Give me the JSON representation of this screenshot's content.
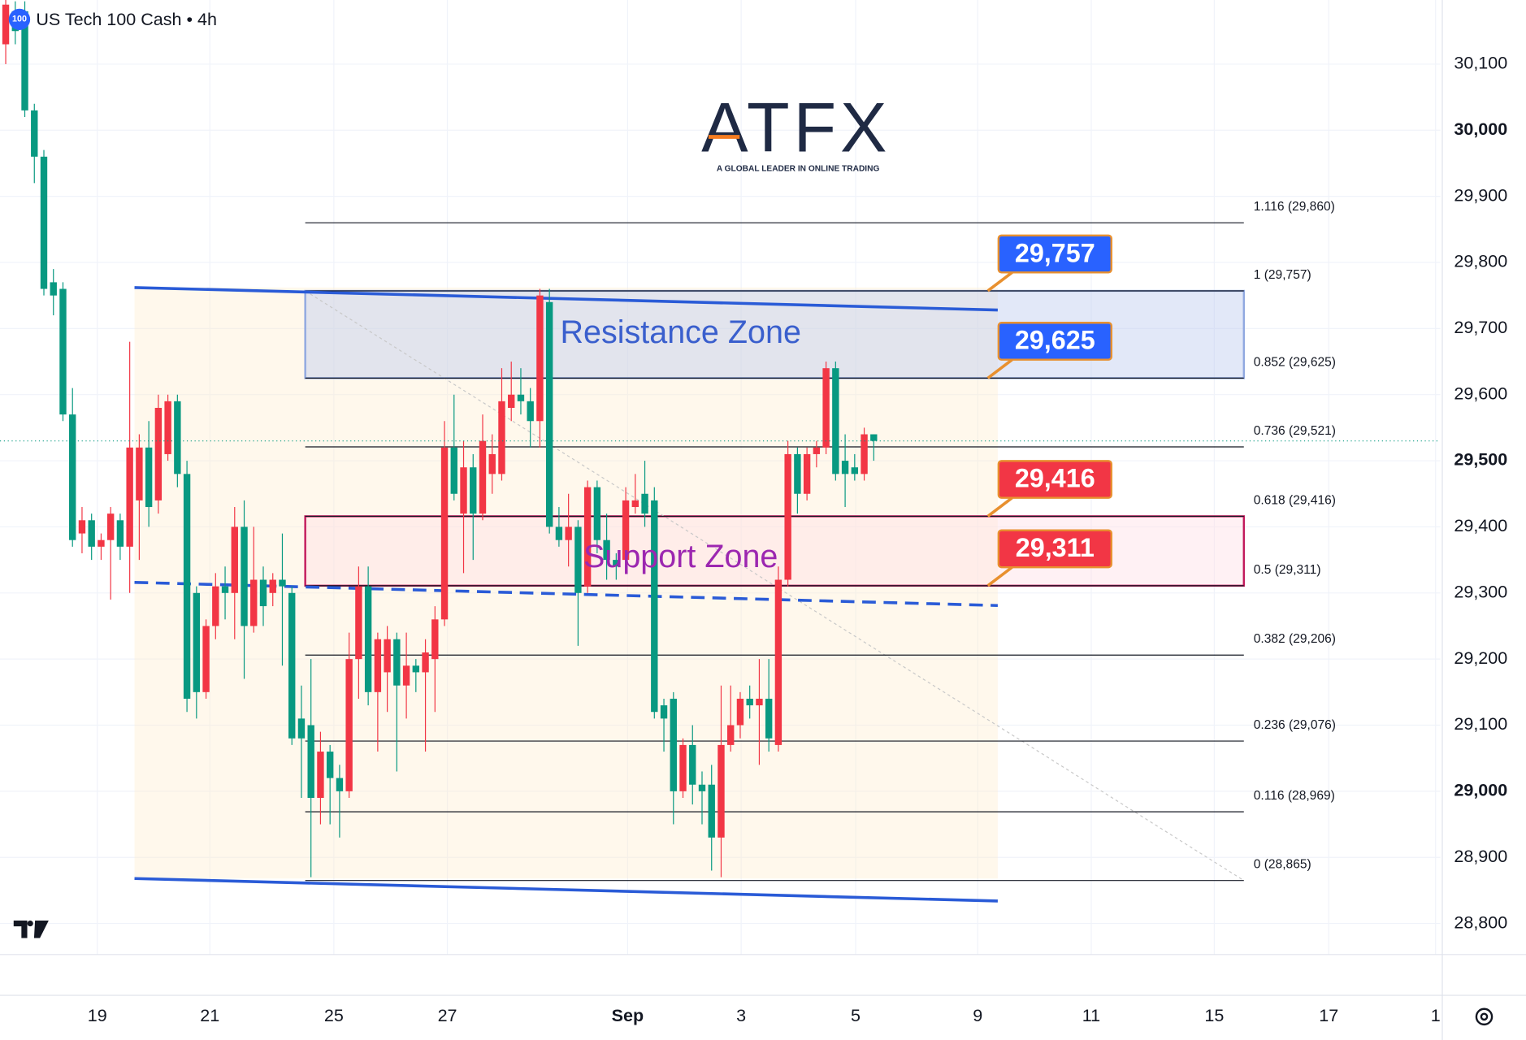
{
  "chart_data": {
    "type": "candlestick",
    "title": "US Tech 100 Cash • 4h",
    "symbol_badge": "100",
    "up_color": "#f23645",
    "down_color": "#089981",
    "xlim": [
      -0.6,
      150.4
    ],
    "ylim": [
      28753,
      30197
    ],
    "yticks": [
      {
        "value": 28800,
        "label": "28,800"
      },
      {
        "value": 28900,
        "label": "28,900"
      },
      {
        "value": 29000,
        "label": "29,000"
      },
      {
        "value": 29100,
        "label": "29,100"
      },
      {
        "value": 29200,
        "label": "29,200"
      },
      {
        "value": 29300,
        "label": "29,300"
      },
      {
        "value": 29400,
        "label": "29,400"
      },
      {
        "value": 29500,
        "label": "29,500"
      },
      {
        "value": 29600,
        "label": "29,600"
      },
      {
        "value": 29700,
        "label": "29,700"
      },
      {
        "value": 29800,
        "label": "29,800"
      },
      {
        "value": 29900,
        "label": "29,900"
      },
      {
        "value": 30000,
        "label": "30,000"
      },
      {
        "value": 30100,
        "label": "30,100"
      }
    ],
    "xticks": [
      {
        "value": 9.6,
        "label": "19"
      },
      {
        "value": 21.4,
        "label": "21"
      },
      {
        "value": 34.4,
        "label": "25"
      },
      {
        "value": 46.3,
        "label": "27"
      },
      {
        "value": 65.2,
        "label": "Sep"
      },
      {
        "value": 77.1,
        "label": "3"
      },
      {
        "value": 89.1,
        "label": "5"
      },
      {
        "value": 101.9,
        "label": "9"
      },
      {
        "value": 113.8,
        "label": "11"
      },
      {
        "value": 126.7,
        "label": "15"
      },
      {
        "value": 138.7,
        "label": "17"
      },
      {
        "value": 149.9,
        "label": "1"
      }
    ],
    "open": [
      30130,
      30180,
      30180,
      30030,
      29960,
      29770,
      29760,
      29570,
      29390,
      29410,
      29370,
      29380,
      29410,
      29370,
      29440,
      29520,
      29440,
      29510,
      29590,
      29480,
      29300,
      29150,
      29250,
      29310,
      29300,
      29400,
      29250,
      29320,
      29300,
      29320,
      29300,
      29110,
      29100,
      28990,
      29060,
      29020,
      29000,
      29200,
      29310,
      29150,
      29180,
      29230,
      29160,
      29190,
      29180,
      29200,
      29260,
      29520,
      29420,
      29490,
      29420,
      29480,
      29480,
      29580,
      29600,
      29590,
      29560,
      29740,
      29400,
      29380,
      29400,
      29310,
      29460,
      29380,
      29350,
      29350,
      29430,
      29450,
      29440,
      29130,
      29140,
      29000,
      29070,
      29010,
      29010,
      28930,
      29070,
      29100,
      29140,
      29130,
      29140,
      29070,
      29320,
      29510,
      29450,
      29510,
      29520,
      29640,
      29500,
      29490,
      29480,
      29540
    ],
    "high": [
      30197,
      30195,
      30195,
      30040,
      29970,
      29790,
      29770,
      29610,
      29430,
      29420,
      29390,
      29430,
      29420,
      29680,
      29540,
      29560,
      29600,
      29600,
      29600,
      29500,
      29310,
      29260,
      29330,
      29340,
      29430,
      29440,
      29400,
      29340,
      29330,
      29390,
      29310,
      29160,
      29200,
      29090,
      29070,
      29040,
      29240,
      29340,
      29340,
      29240,
      29250,
      29240,
      29240,
      29200,
      29230,
      29280,
      29560,
      29600,
      29530,
      29510,
      29570,
      29540,
      29640,
      29650,
      29640,
      29610,
      29760,
      29760,
      29430,
      29450,
      29410,
      29470,
      29470,
      29420,
      29360,
      29460,
      29480,
      29500,
      29460,
      29140,
      29150,
      29080,
      29100,
      29030,
      29040,
      29160,
      29160,
      29150,
      29160,
      29200,
      29200,
      29340,
      29530,
      29520,
      29520,
      29530,
      29650,
      29650,
      29540,
      29510,
      29550,
      29540
    ],
    "low": [
      30100,
      30130,
      30020,
      29920,
      29750,
      29720,
      29560,
      29370,
      29360,
      29350,
      29350,
      29290,
      29350,
      29300,
      29350,
      29400,
      29420,
      29500,
      29460,
      29120,
      29110,
      29140,
      29230,
      29260,
      29230,
      29170,
      29240,
      29250,
      29280,
      29190,
      29070,
      28990,
      28870,
      28950,
      28950,
      28930,
      28990,
      29140,
      29130,
      29060,
      29120,
      29030,
      29110,
      29150,
      29060,
      29120,
      29250,
      29440,
      29330,
      29350,
      29410,
      29450,
      29470,
      29560,
      29570,
      29520,
      29520,
      29390,
      29370,
      29340,
      29220,
      29300,
      29360,
      29320,
      29320,
      29340,
      29420,
      29400,
      29110,
      29060,
      28950,
      28990,
      28980,
      28950,
      28880,
      28870,
      29060,
      29080,
      29110,
      29040,
      29060,
      29060,
      29310,
      29420,
      29440,
      29490,
      29510,
      29470,
      29430,
      29470,
      29470,
      29500
    ],
    "close": [
      30190,
      30150,
      30030,
      29960,
      29760,
      29750,
      29570,
      29380,
      29410,
      29370,
      29380,
      29420,
      29370,
      29520,
      29520,
      29430,
      29580,
      29590,
      29480,
      29140,
      29150,
      29250,
      29310,
      29300,
      29400,
      29250,
      29320,
      29280,
      29320,
      29310,
      29080,
      29080,
      28990,
      29060,
      29020,
      29000,
      29200,
      29310,
      29150,
      29230,
      29230,
      29160,
      29190,
      29180,
      29210,
      29260,
      29520,
      29450,
      29490,
      29420,
      29530,
      29510,
      29590,
      29600,
      29590,
      29560,
      29750,
      29400,
      29380,
      29400,
      29300,
      29460,
      29380,
      29350,
      29340,
      29440,
      29440,
      29420,
      29120,
      29110,
      29000,
      29070,
      29010,
      29000,
      28930,
      29070,
      29100,
      29140,
      29130,
      29140,
      29080,
      29320,
      29510,
      29450,
      29510,
      29520,
      29640,
      29480,
      29480,
      29480,
      29540,
      29530
    ],
    "fib_x": [
      31.4,
      129.8
    ],
    "fib_levels": [
      {
        "label": "1.116 (29,860)",
        "value": 29860
      },
      {
        "label": "1 (29,757)",
        "value": 29757
      },
      {
        "label": "0.852 (29,625)",
        "value": 29625
      },
      {
        "label": "0.736 (29,521)",
        "value": 29521
      },
      {
        "label": "0.618 (29,416)",
        "value": 29416
      },
      {
        "label": "0.5 (29,311)",
        "value": 29311
      },
      {
        "label": "0.382 (29,206)",
        "value": 29206
      },
      {
        "label": "0.236 (29,076)",
        "value": 29076
      },
      {
        "label": "0.116 (28,969)",
        "value": 28969
      },
      {
        "label": "0 (28,865)",
        "value": 28865
      }
    ],
    "zones": [
      {
        "label": "Resistance Zone",
        "from": 29625,
        "to": 29757,
        "fill": "rgba(190,205,240,0.45)",
        "stroke": "#90a8e0",
        "text_color": "#3a5fcd"
      },
      {
        "label": "Support Zone",
        "from": 29311,
        "to": 29416,
        "fill": "rgba(255,225,230,0.45)",
        "stroke": "#c2185b",
        "text_color": "#9c27b0"
      }
    ],
    "callouts": [
      {
        "label": "29,757",
        "value": 29757,
        "color": "#2962ff"
      },
      {
        "label": "29,625",
        "value": 29625,
        "color": "#2962ff"
      },
      {
        "label": "29,416",
        "value": 29416,
        "color": "#f23645"
      },
      {
        "label": "29,311",
        "value": 29311,
        "color": "#f23645"
      }
    ],
    "trend_lines": [
      {
        "x": [
          13.5,
          104
        ],
        "y": [
          29762,
          29728
        ],
        "color": "#2a5bd7",
        "dashed": false
      },
      {
        "x": [
          13.5,
          104
        ],
        "y": [
          29316,
          29281
        ],
        "color": "#2a5bd7",
        "dashed": true
      },
      {
        "x": [
          13.5,
          104
        ],
        "y": [
          28868,
          28834
        ],
        "color": "#2a5bd7",
        "dashed": false
      }
    ],
    "watermark": {
      "name": "ATFX",
      "tagline": "A GLOBAL LEADER IN ONLINE TRADING"
    }
  }
}
